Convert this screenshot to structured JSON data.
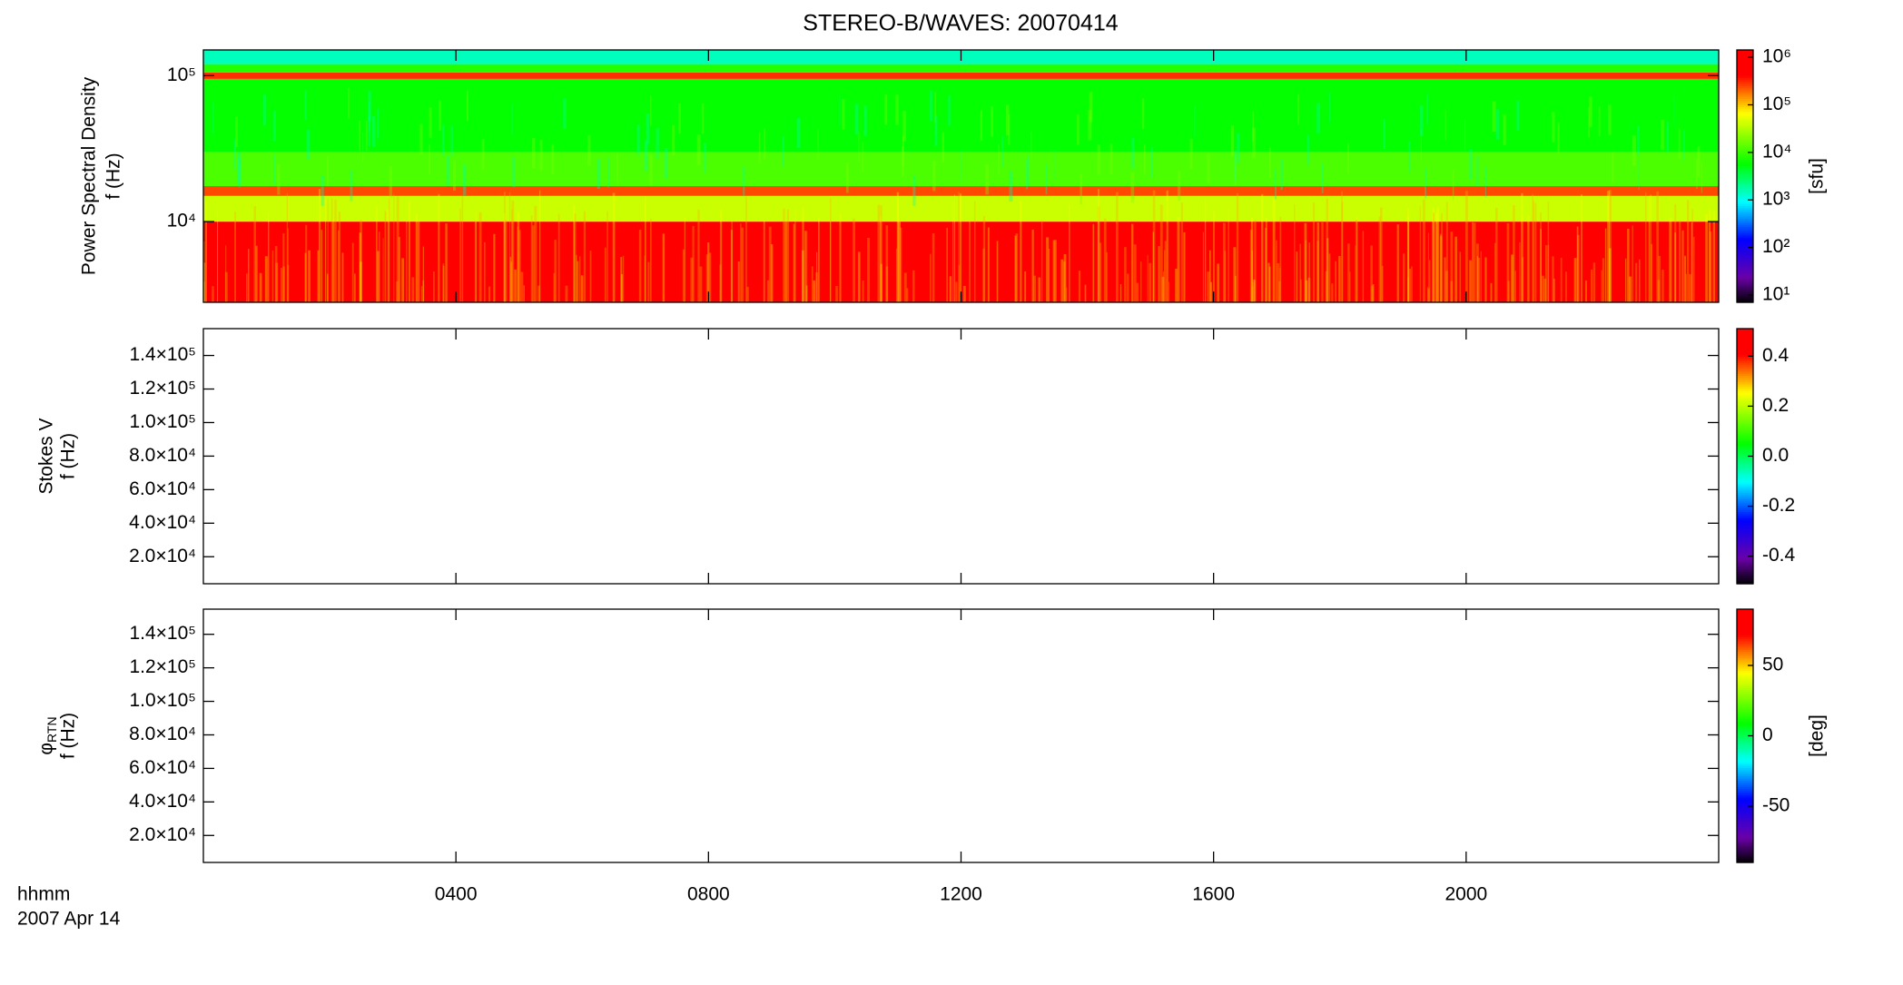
{
  "chart_data": [
    {
      "type": "spectrogram",
      "title": "STEREO-B/WAVES: 20070414",
      "ylabel": [
        "Power Spectral Density",
        "f (Hz)"
      ],
      "ylog": true,
      "ylim": [
        2800,
        150000
      ],
      "yticks": [
        {
          "value": 10000,
          "label": "10⁴"
        },
        {
          "value": 100000,
          "label": "10⁵"
        }
      ],
      "xlim": [
        0,
        24
      ],
      "colorbar": {
        "log": true,
        "lim": [
          7,
          1430000
        ],
        "label": "[sfu]",
        "ticks": [
          {
            "value": 10,
            "label": "10¹"
          },
          {
            "value": 100,
            "label": "10²"
          },
          {
            "value": 1000,
            "label": "10³"
          },
          {
            "value": 10000,
            "label": "10⁴"
          },
          {
            "value": 100000,
            "label": "10⁵"
          },
          {
            "value": 1000000,
            "label": "10⁶"
          }
        ]
      },
      "bands": [
        {
          "flim": [
            2800,
            10000
          ],
          "level": 500000
        },
        {
          "flim": [
            10000,
            15000
          ],
          "level": 40000
        },
        {
          "flim": [
            15000,
            17500
          ],
          "level": 250000
        },
        {
          "flim": [
            17500,
            30000
          ],
          "level": 12000
        },
        {
          "flim": [
            30000,
            95000
          ],
          "level": 6000
        },
        {
          "flim": [
            95000,
            105000
          ],
          "level": 300000
        },
        {
          "flim": [
            105000,
            120000
          ],
          "level": 8000
        },
        {
          "flim": [
            120000,
            150000
          ],
          "level": 1500
        }
      ]
    },
    {
      "type": "spectrogram",
      "ylabel": [
        "Stokes V",
        "f (Hz)"
      ],
      "ylog": false,
      "ylim": [
        3900,
        156000
      ],
      "yticks": [
        {
          "value": 20000,
          "label": "2.0×10⁴"
        },
        {
          "value": 40000,
          "label": "4.0×10⁴"
        },
        {
          "value": 60000,
          "label": "6.0×10⁴"
        },
        {
          "value": 80000,
          "label": "8.0×10⁴"
        },
        {
          "value": 100000,
          "label": "1.0×10⁵"
        },
        {
          "value": 120000,
          "label": "1.2×10⁵"
        },
        {
          "value": 140000,
          "label": "1.4×10⁵"
        }
      ],
      "xlim": [
        0,
        24
      ],
      "colorbar": {
        "log": false,
        "lim": [
          -0.51,
          0.51
        ],
        "ticks": [
          {
            "value": -0.4,
            "label": "-0.4"
          },
          {
            "value": -0.2,
            "label": "-0.2"
          },
          {
            "value": 0,
            "label": "0.0"
          },
          {
            "value": 0.2,
            "label": "0.2"
          },
          {
            "value": 0.4,
            "label": "0.4"
          }
        ]
      }
    },
    {
      "type": "spectrogram",
      "ylabel": [
        "φ",
        "f (Hz)"
      ],
      "ylabel_sub": "RTN",
      "ylog": false,
      "ylim": [
        3900,
        155000
      ],
      "yticks": [
        {
          "value": 20000,
          "label": "2.0×10⁴"
        },
        {
          "value": 40000,
          "label": "4.0×10⁴"
        },
        {
          "value": 60000,
          "label": "6.0×10⁴"
        },
        {
          "value": 80000,
          "label": "8.0×10⁴"
        },
        {
          "value": 100000,
          "label": "1.0×10⁵"
        },
        {
          "value": 120000,
          "label": "1.2×10⁵"
        },
        {
          "value": 140000,
          "label": "1.4×10⁵"
        }
      ],
      "xlim": [
        0,
        24
      ],
      "xticks": [
        {
          "value": 4,
          "label": "0400"
        },
        {
          "value": 8,
          "label": "0800"
        },
        {
          "value": 12,
          "label": "1200"
        },
        {
          "value": 16,
          "label": "1600"
        },
        {
          "value": 20,
          "label": "2000"
        }
      ],
      "xlabel": "hhmm",
      "date": "2007 Apr 14",
      "colorbar": {
        "log": false,
        "lim": [
          -90,
          90
        ],
        "label": "[deg]",
        "ticks": [
          {
            "value": -50,
            "label": "-50"
          },
          {
            "value": 0,
            "label": "0"
          },
          {
            "value": 50,
            "label": "50"
          }
        ]
      }
    }
  ]
}
